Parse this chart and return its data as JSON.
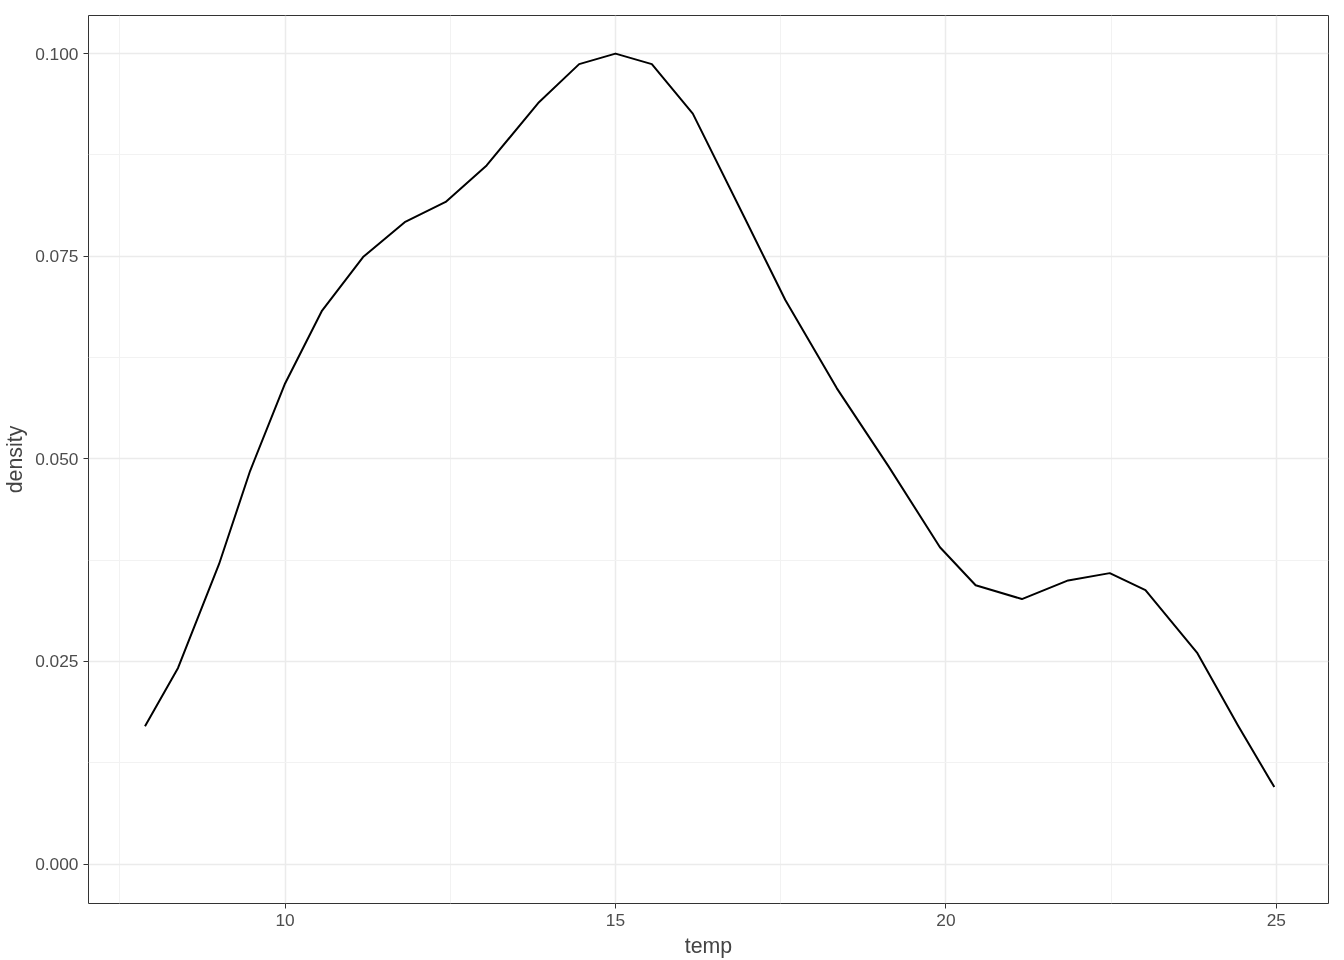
{
  "chart_data": {
    "type": "line",
    "xlabel": "temp",
    "ylabel": "density",
    "x": [
      7.88,
      8.38,
      9.0,
      9.47,
      10.0,
      10.56,
      11.18,
      11.81,
      12.43,
      13.05,
      13.83,
      14.45,
      15.0,
      15.55,
      16.17,
      16.95,
      17.57,
      18.35,
      19.13,
      19.91,
      20.45,
      21.15,
      21.85,
      22.48,
      23.02,
      23.8,
      24.42,
      24.97
    ],
    "series": [
      {
        "color": "#000000",
        "values": [
          0.017,
          0.0242,
          0.037,
          0.0485,
          0.0593,
          0.0683,
          0.0749,
          0.0792,
          0.0817,
          0.0862,
          0.0939,
          0.0987,
          0.1,
          0.0987,
          0.0926,
          0.0798,
          0.0696,
          0.0587,
          0.0491,
          0.0391,
          0.0344,
          0.0327,
          0.035,
          0.0359,
          0.0338,
          0.0261,
          0.0171,
          0.0095
        ]
      }
    ],
    "xlim": [
      7.025,
      25.79
    ],
    "ylim": [
      -0.00486,
      0.1047
    ],
    "xticks": [
      10,
      15,
      20,
      25
    ],
    "yticks": [
      {
        "value": 0,
        "label": "0.000"
      },
      {
        "value": 0.025,
        "label": "0.025"
      },
      {
        "value": 0.05,
        "label": "0.050"
      },
      {
        "value": 0.075,
        "label": "0.075"
      },
      {
        "value": 0.1,
        "label": "0.100"
      }
    ],
    "grid": true,
    "marker": "none",
    "line_style": "solid"
  }
}
